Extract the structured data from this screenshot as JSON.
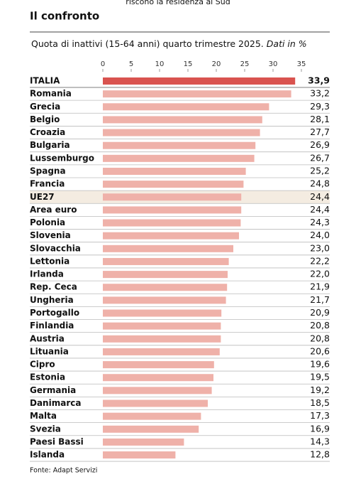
{
  "header": {
    "cropped_caption": "riscono la residenza al Sud"
  },
  "chart_data": {
    "type": "bar",
    "orientation": "horizontal",
    "title": "Il confronto",
    "subtitle": "Quota di inattivi (15-64 anni) quarto trimestre 2025.",
    "subtitle_note": "Dati in %",
    "source": "Fonte: Adapt Servizi",
    "categories": [
      "ITALIA",
      "Romania",
      "Grecia",
      "Belgio",
      "Croazia",
      "Bulgaria",
      "Lussemburgo",
      "Spagna",
      "Francia",
      "UE27",
      "Area euro",
      "Polonia",
      "Slovenia",
      "Slovacchia",
      "Lettonia",
      "Irlanda",
      "Rep. Ceca",
      "Ungheria",
      "Portogallo",
      "Finlandia",
      "Austria",
      "Lituania",
      "Cipro",
      "Estonia",
      "Germania",
      "Danimarca",
      "Malta",
      "Svezia",
      "Paesi Bassi",
      "Islanda"
    ],
    "values": [
      33.9,
      33.2,
      29.3,
      28.1,
      27.7,
      26.9,
      26.7,
      25.2,
      24.8,
      24.4,
      24.4,
      24.3,
      24.0,
      23.0,
      22.2,
      22.0,
      21.9,
      21.7,
      20.9,
      20.8,
      20.8,
      20.6,
      19.6,
      19.5,
      19.2,
      18.5,
      17.3,
      16.9,
      14.3,
      12.8
    ],
    "value_labels": [
      "33,9",
      "33,2",
      "29,3",
      "28,1",
      "27,7",
      "26,9",
      "26,7",
      "25,2",
      "24,8",
      "24,4",
      "24,4",
      "24,3",
      "24,0",
      "23,0",
      "22,2",
      "22,0",
      "21,9",
      "21,7",
      "20,9",
      "20,8",
      "20,8",
      "20,6",
      "19,6",
      "19,5",
      "19,2",
      "18,5",
      "17,3",
      "16,9",
      "14,3",
      "12,8"
    ],
    "colors": [
      "#d9534f",
      "#efb1a9",
      "#efb1a9",
      "#efb1a9",
      "#efb1a9",
      "#efb1a9",
      "#efb1a9",
      "#efb1a9",
      "#efb1a9",
      "#efb1a9",
      "#efb1a9",
      "#efb1a9",
      "#efb1a9",
      "#efb1a9",
      "#efb1a9",
      "#efb1a9",
      "#efb1a9",
      "#efb1a9",
      "#efb1a9",
      "#efb1a9",
      "#efb1a9",
      "#efb1a9",
      "#efb1a9",
      "#efb1a9",
      "#efb1a9",
      "#efb1a9",
      "#efb1a9",
      "#efb1a9",
      "#efb1a9",
      "#efb1a9"
    ],
    "xlim": [
      0,
      35
    ],
    "xticks": [
      0,
      5,
      10,
      15,
      20,
      25,
      30,
      35
    ]
  }
}
